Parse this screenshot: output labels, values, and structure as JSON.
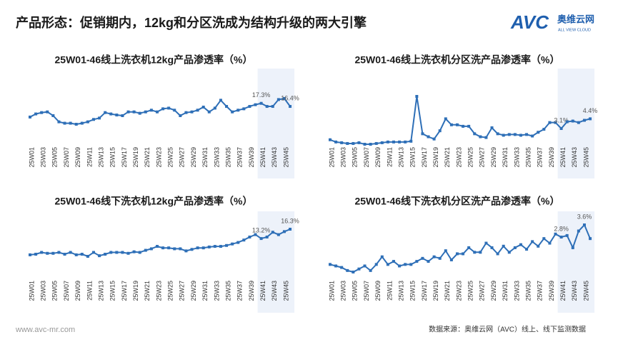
{
  "header": {
    "title": "产品形态：促销期内，12kg和分区洗成为结构升级的两大引擎",
    "logo": {
      "mark": "AVC",
      "name": "奥维云网",
      "sub": "ALL VIEW CLOUD"
    }
  },
  "footer": {
    "website": "www.avc-mr.com",
    "source": "数据来源：奥维云网（AVC）线上、线下监测数据"
  },
  "chart_data": [
    {
      "type": "line",
      "title": "25W01-46线上洗衣机12kg产品渗透率（%）",
      "color": "#2e6fb7",
      "categories": [
        "25W01",
        null,
        "25W03",
        null,
        "25W05",
        null,
        "25W07",
        null,
        "25W09",
        null,
        "25W11",
        null,
        "25W13",
        null,
        "25W15",
        null,
        "25W17",
        null,
        "25W19",
        null,
        "25W21",
        null,
        "25W23",
        null,
        "25W25",
        null,
        "25W27",
        null,
        "25W29",
        null,
        "25W31",
        null,
        "25W33",
        null,
        "25W35",
        null,
        "25W37",
        null,
        "25W39",
        null,
        "25W41",
        null,
        "25W43",
        null,
        "25W45",
        null
      ],
      "values": [
        13.3,
        14.2,
        14.6,
        14.8,
        13.7,
        11.9,
        11.5,
        11.5,
        11.2,
        11.5,
        11.9,
        12.6,
        13.0,
        14.6,
        14.2,
        13.9,
        13.7,
        14.8,
        14.8,
        14.4,
        14.8,
        15.3,
        14.8,
        15.7,
        15.9,
        15.3,
        13.7,
        14.6,
        14.8,
        15.3,
        16.2,
        14.8,
        15.9,
        18.2,
        16.4,
        14.8,
        15.3,
        15.7,
        16.4,
        16.9,
        17.3,
        16.4,
        16.4,
        18.4,
        18.7,
        16.4
      ],
      "value_labels": [
        null,
        null,
        null,
        null,
        null,
        null,
        null,
        null,
        null,
        null,
        null,
        null,
        null,
        null,
        null,
        null,
        null,
        null,
        null,
        null,
        null,
        null,
        null,
        null,
        null,
        null,
        null,
        null,
        null,
        null,
        null,
        null,
        null,
        null,
        null,
        null,
        null,
        null,
        null,
        null,
        "17.3%",
        null,
        null,
        null,
        null,
        "16.4%"
      ]
    },
    {
      "type": "line",
      "title": "25W01-46线上洗衣机分区洗产品渗透率（%）",
      "color": "#2e6fb7",
      "categories": [
        "25W01",
        null,
        "25W03",
        null,
        "25W05",
        null,
        "25W07",
        null,
        "25W09",
        null,
        "25W11",
        null,
        "25W13",
        null,
        "25W15",
        null,
        "25W17",
        null,
        "25W19",
        null,
        "25W21",
        null,
        "25W23",
        null,
        "25W25",
        null,
        "25W27",
        null,
        "25W29",
        null,
        "25W31",
        null,
        "25W33",
        null,
        "25W35",
        null,
        "25W37",
        null,
        "25W39",
        null,
        "25W41",
        null,
        "25W43",
        null,
        "25W45",
        null
      ],
      "values": [
        1.6,
        1.3,
        1.2,
        1.1,
        1.1,
        1.2,
        1.0,
        1.0,
        1.1,
        1.2,
        1.3,
        1.3,
        1.3,
        1.3,
        1.4,
        7.4,
        2.4,
        2.0,
        1.7,
        2.8,
        4.4,
        3.6,
        3.6,
        3.4,
        3.4,
        2.4,
        2.0,
        1.9,
        3.2,
        2.4,
        2.2,
        2.3,
        2.3,
        2.2,
        2.3,
        2.1,
        2.6,
        3.0,
        3.9,
        3.9,
        3.1,
        4.0,
        4.1,
        3.9,
        4.2,
        4.4
      ],
      "value_labels": [
        null,
        null,
        null,
        null,
        null,
        null,
        null,
        null,
        null,
        null,
        null,
        null,
        null,
        null,
        null,
        null,
        null,
        null,
        null,
        null,
        null,
        null,
        null,
        null,
        null,
        null,
        null,
        null,
        null,
        null,
        null,
        null,
        null,
        null,
        null,
        null,
        null,
        null,
        null,
        null,
        "3.1%",
        null,
        null,
        null,
        null,
        "4.4%"
      ]
    },
    {
      "type": "line",
      "title": "25W01-46线下洗衣机12kg产品渗透率（%）",
      "color": "#2e6fb7",
      "categories": [
        "25W01",
        null,
        "25W03",
        null,
        "25W05",
        null,
        "25W07",
        null,
        "25W09",
        null,
        "25W11",
        null,
        "25W13",
        null,
        "25W15",
        null,
        "25W17",
        null,
        "25W19",
        null,
        "25W21",
        null,
        "25W23",
        null,
        "25W25",
        null,
        "25W27",
        null,
        "25W29",
        null,
        "25W31",
        null,
        "25W33",
        null,
        "25W35",
        null,
        "25W37",
        null,
        "25W39",
        null,
        "25W41",
        null,
        "25W43",
        null,
        "25W45",
        null
      ],
      "values": [
        7.8,
        8.0,
        8.6,
        8.3,
        8.3,
        8.6,
        8.0,
        8.6,
        7.8,
        8.0,
        7.3,
        8.6,
        7.5,
        8.0,
        8.6,
        8.6,
        8.6,
        8.3,
        8.8,
        8.6,
        9.3,
        9.8,
        10.6,
        10.1,
        10.1,
        9.8,
        9.8,
        9.1,
        9.6,
        10.1,
        10.1,
        10.4,
        10.6,
        10.6,
        10.9,
        11.4,
        11.9,
        12.7,
        13.7,
        14.5,
        13.2,
        13.7,
        15.3,
        14.5,
        15.5,
        16.3
      ],
      "value_labels": [
        null,
        null,
        null,
        null,
        null,
        null,
        null,
        null,
        null,
        null,
        null,
        null,
        null,
        null,
        null,
        null,
        null,
        null,
        null,
        null,
        null,
        null,
        null,
        null,
        null,
        null,
        null,
        null,
        null,
        null,
        null,
        null,
        null,
        null,
        null,
        null,
        null,
        null,
        null,
        null,
        "13.2%",
        null,
        null,
        null,
        null,
        "16.3%"
      ]
    },
    {
      "type": "line",
      "title": "25W01-46线下洗衣机分区洗产品渗透率（%）",
      "color": "#2e6fb7",
      "categories": [
        "25W01",
        null,
        "25W03",
        null,
        "25W05",
        null,
        "25W07",
        null,
        "25W09",
        null,
        "25W11",
        null,
        "25W13",
        null,
        "25W15",
        null,
        "25W17",
        null,
        "25W19",
        null,
        "25W21",
        null,
        "25W23",
        null,
        "25W25",
        null,
        "25W27",
        null,
        "25W29",
        null,
        "25W31",
        null,
        "25W33",
        null,
        "25W35",
        null,
        "25W37",
        null,
        "25W39",
        null,
        "25W41",
        null,
        "25W43",
        null,
        "25W45",
        null
      ],
      "values": [
        1.0,
        0.9,
        0.8,
        0.6,
        0.5,
        0.7,
        0.9,
        0.6,
        1.0,
        1.5,
        1.0,
        1.2,
        0.9,
        1.0,
        1.0,
        1.2,
        1.4,
        1.2,
        1.5,
        1.4,
        1.9,
        1.3,
        1.7,
        1.7,
        2.1,
        1.8,
        1.8,
        2.4,
        2.1,
        1.7,
        2.2,
        1.8,
        2.1,
        2.3,
        2.0,
        2.5,
        2.2,
        2.7,
        2.4,
        3.0,
        2.8,
        2.9,
        2.1,
        3.2,
        3.6,
        2.7
      ],
      "value_labels": [
        null,
        null,
        null,
        null,
        null,
        null,
        null,
        null,
        null,
        null,
        null,
        null,
        null,
        null,
        null,
        null,
        null,
        null,
        null,
        null,
        null,
        null,
        null,
        null,
        null,
        null,
        null,
        null,
        null,
        null,
        null,
        null,
        null,
        null,
        null,
        null,
        null,
        null,
        null,
        null,
        "2.8%",
        null,
        null,
        null,
        "3.6%",
        null
      ]
    }
  ]
}
